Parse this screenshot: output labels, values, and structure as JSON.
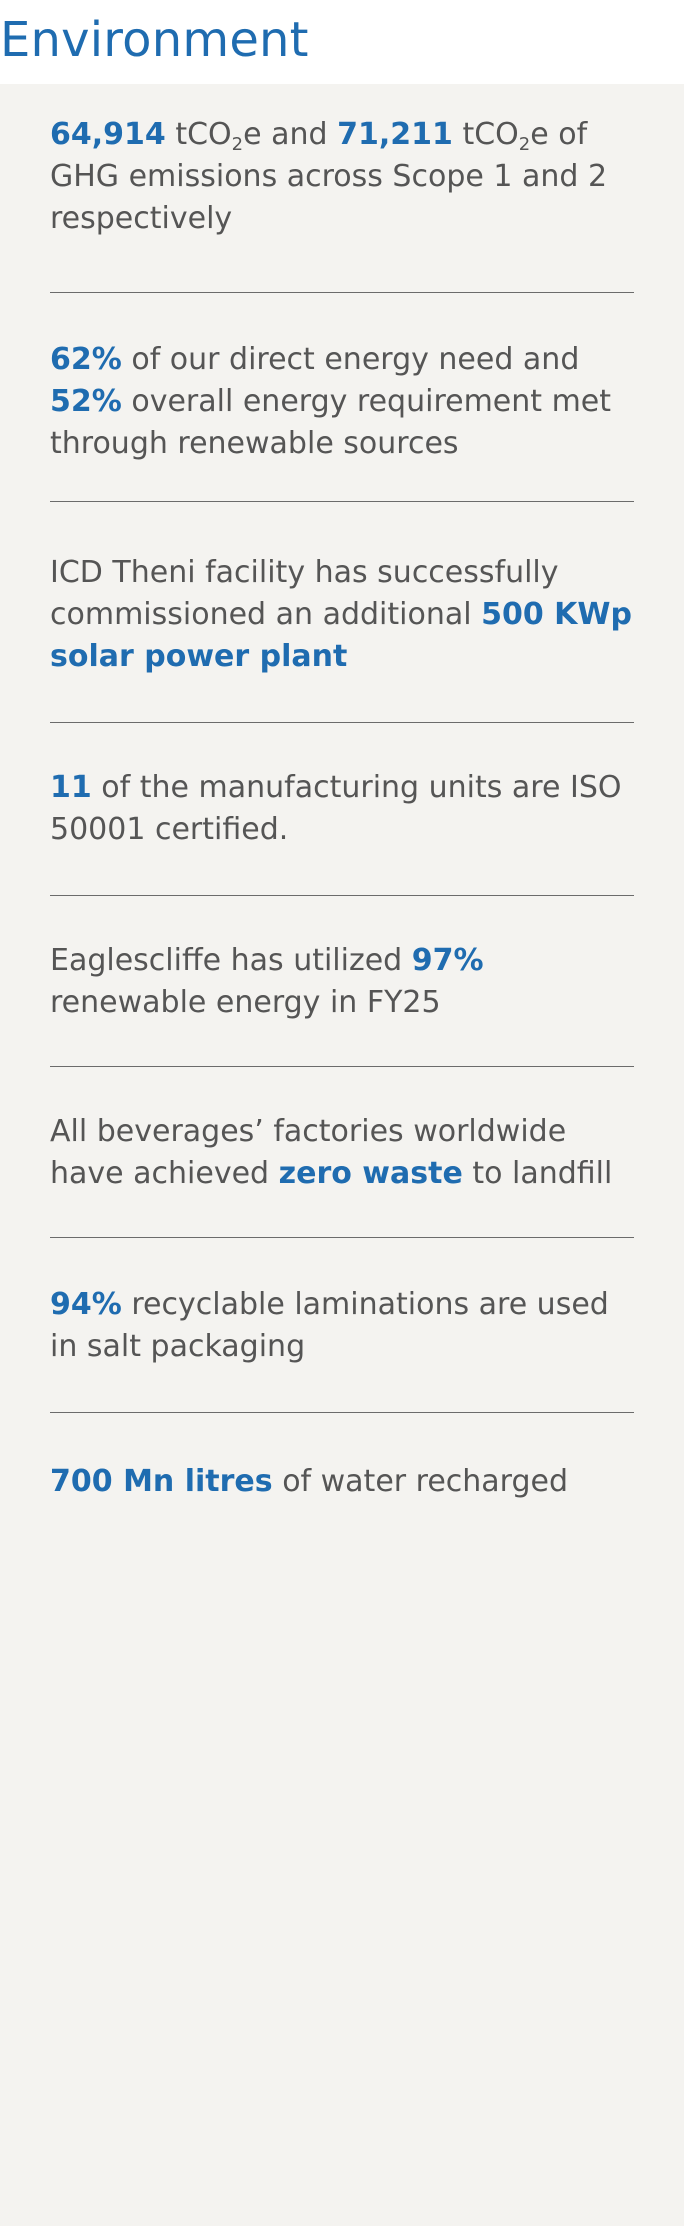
{
  "page": {
    "title": "Environment"
  },
  "items": {
    "ghg": {
      "value1": "64,914",
      "unit1_pre": "tCO",
      "unit1_sub": "2",
      "unit1_post": "e",
      "connector": "and",
      "value2": "71,211",
      "unit2_pre": "tCO",
      "unit2_sub": "2",
      "unit2_post": "e",
      "tail": "of GHG emissions across Scope 1 and 2 respectively"
    },
    "renewable": {
      "value1": "62%",
      "text1": "of our direct energy need and",
      "value2": "52%",
      "text2": "overall energy requirement met through renewable sources"
    },
    "solar": {
      "text": "ICD Theni facility has successfully commissioned an additional",
      "value": "500 KWp solar power plant"
    },
    "iso": {
      "value": "11",
      "text": "of the manufacturing units are ISO 50001 certified."
    },
    "eaglescliffe": {
      "text1": "Eaglescliffe has utilized",
      "value": "97%",
      "text2": "renewable energy in FY25"
    },
    "beverages": {
      "text1": "All beverages’ factories worldwide have achieved",
      "value": "zero waste",
      "text2": "to landfill"
    },
    "laminations": {
      "value": "94%",
      "text": "recyclable laminations are used in salt packaging"
    },
    "water": {
      "value": "700 Mn litres",
      "text": "of water recharged"
    }
  },
  "colors": {
    "accent": "#1f6cb0",
    "text": "#555555",
    "background": "#f4f3f0",
    "header_background": "#ffffff",
    "divider": "#6b6b6b"
  }
}
